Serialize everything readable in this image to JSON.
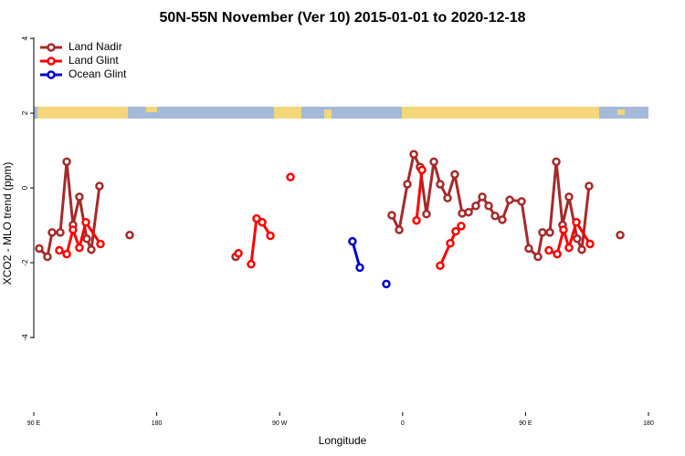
{
  "chart_data": {
    "type": "line",
    "title": "50N-55N November (Ver 10)   2015-01-01 to 2020-12-18",
    "x_label": "Longitude",
    "y_label": "XCO2 - MLO trend (ppm)",
    "xlim": [
      90,
      540
    ],
    "ylim": [
      -6,
      4.1
    ],
    "xticks": [
      {
        "value": 90,
        "label": "90 E"
      },
      180,
      {
        "value": 270,
        "label": "90 W"
      },
      {
        "value": 360,
        "label": "0"
      },
      {
        "value": 450,
        "label": "90 E"
      },
      {
        "value": 540,
        "label": "180"
      }
    ],
    "yticks": [
      4,
      2,
      0,
      -2,
      -4
    ],
    "legend": "top-left",
    "series": [
      {
        "name": "Land Nadir",
        "color": "#a52a2a",
        "x": [
          94.0,
          100.0,
          103.4,
          109.4,
          114.1,
          118.7,
          123.4,
          128.8,
          132.1,
          138.1,
          null,
          160.2,
          null,
          237.8,
          null,
          352.1,
          357.5,
          363.5,
          368.2,
          372.8,
          377.5,
          382.9,
          387.5,
          392.9,
          398.2,
          403.6,
          408.3,
          413.6,
          418.3,
          423.0,
          427.7,
          433.0,
          438.4,
          447.1,
          452.4,
          459.1,
          462.4,
          467.8,
          472.5,
          477.1,
          481.8,
          487.8,
          491.2,
          496.5,
          null,
          519.3
        ],
        "values": [
          -1.62,
          -1.84,
          -1.19,
          -1.19,
          0.7,
          -0.99,
          -0.24,
          -1.36,
          -1.65,
          0.05,
          null,
          -1.26,
          null,
          -1.84,
          null,
          -0.73,
          -1.12,
          0.1,
          0.9,
          0.56,
          -0.7,
          0.7,
          0.1,
          -0.27,
          0.36,
          -0.68,
          -0.65,
          -0.48,
          -0.24,
          -0.48,
          -0.75,
          -0.85,
          -0.32,
          -0.36,
          -1.62,
          -1.84,
          -1.19,
          -1.19,
          0.7,
          -0.99,
          -0.24,
          -1.36,
          -1.65,
          0.05,
          null,
          -1.26
        ]
      },
      {
        "name": "Land Glint",
        "color": "#ff0000",
        "x": [
          108.7,
          114.1,
          118.7,
          123.4,
          128.1,
          138.8,
          null,
          239.8,
          null,
          249.1,
          253.1,
          257.2,
          263.2,
          null,
          277.9,
          null,
          370.2,
          374.2,
          null,
          387.5,
          394.9,
          398.9,
          402.9,
          null,
          467.1,
          473.2,
          477.8,
          481.8,
          487.2,
          497.2
        ],
        "values": [
          -1.67,
          -1.77,
          -1.12,
          -1.6,
          -0.92,
          -1.5,
          null,
          -1.75,
          null,
          -2.04,
          -0.82,
          -0.92,
          -1.28,
          null,
          0.29,
          null,
          -0.87,
          0.48,
          null,
          -2.08,
          -1.48,
          -1.16,
          -1.02,
          null,
          -1.67,
          -1.77,
          -1.12,
          -1.6,
          -0.92,
          -1.5
        ]
      },
      {
        "name": "Ocean Glint",
        "color": "#0000cd",
        "x": [
          323.3,
          328.7,
          null,
          348.1
        ],
        "values": [
          -1.43,
          -2.13,
          null,
          -2.57
        ]
      }
    ]
  }
}
